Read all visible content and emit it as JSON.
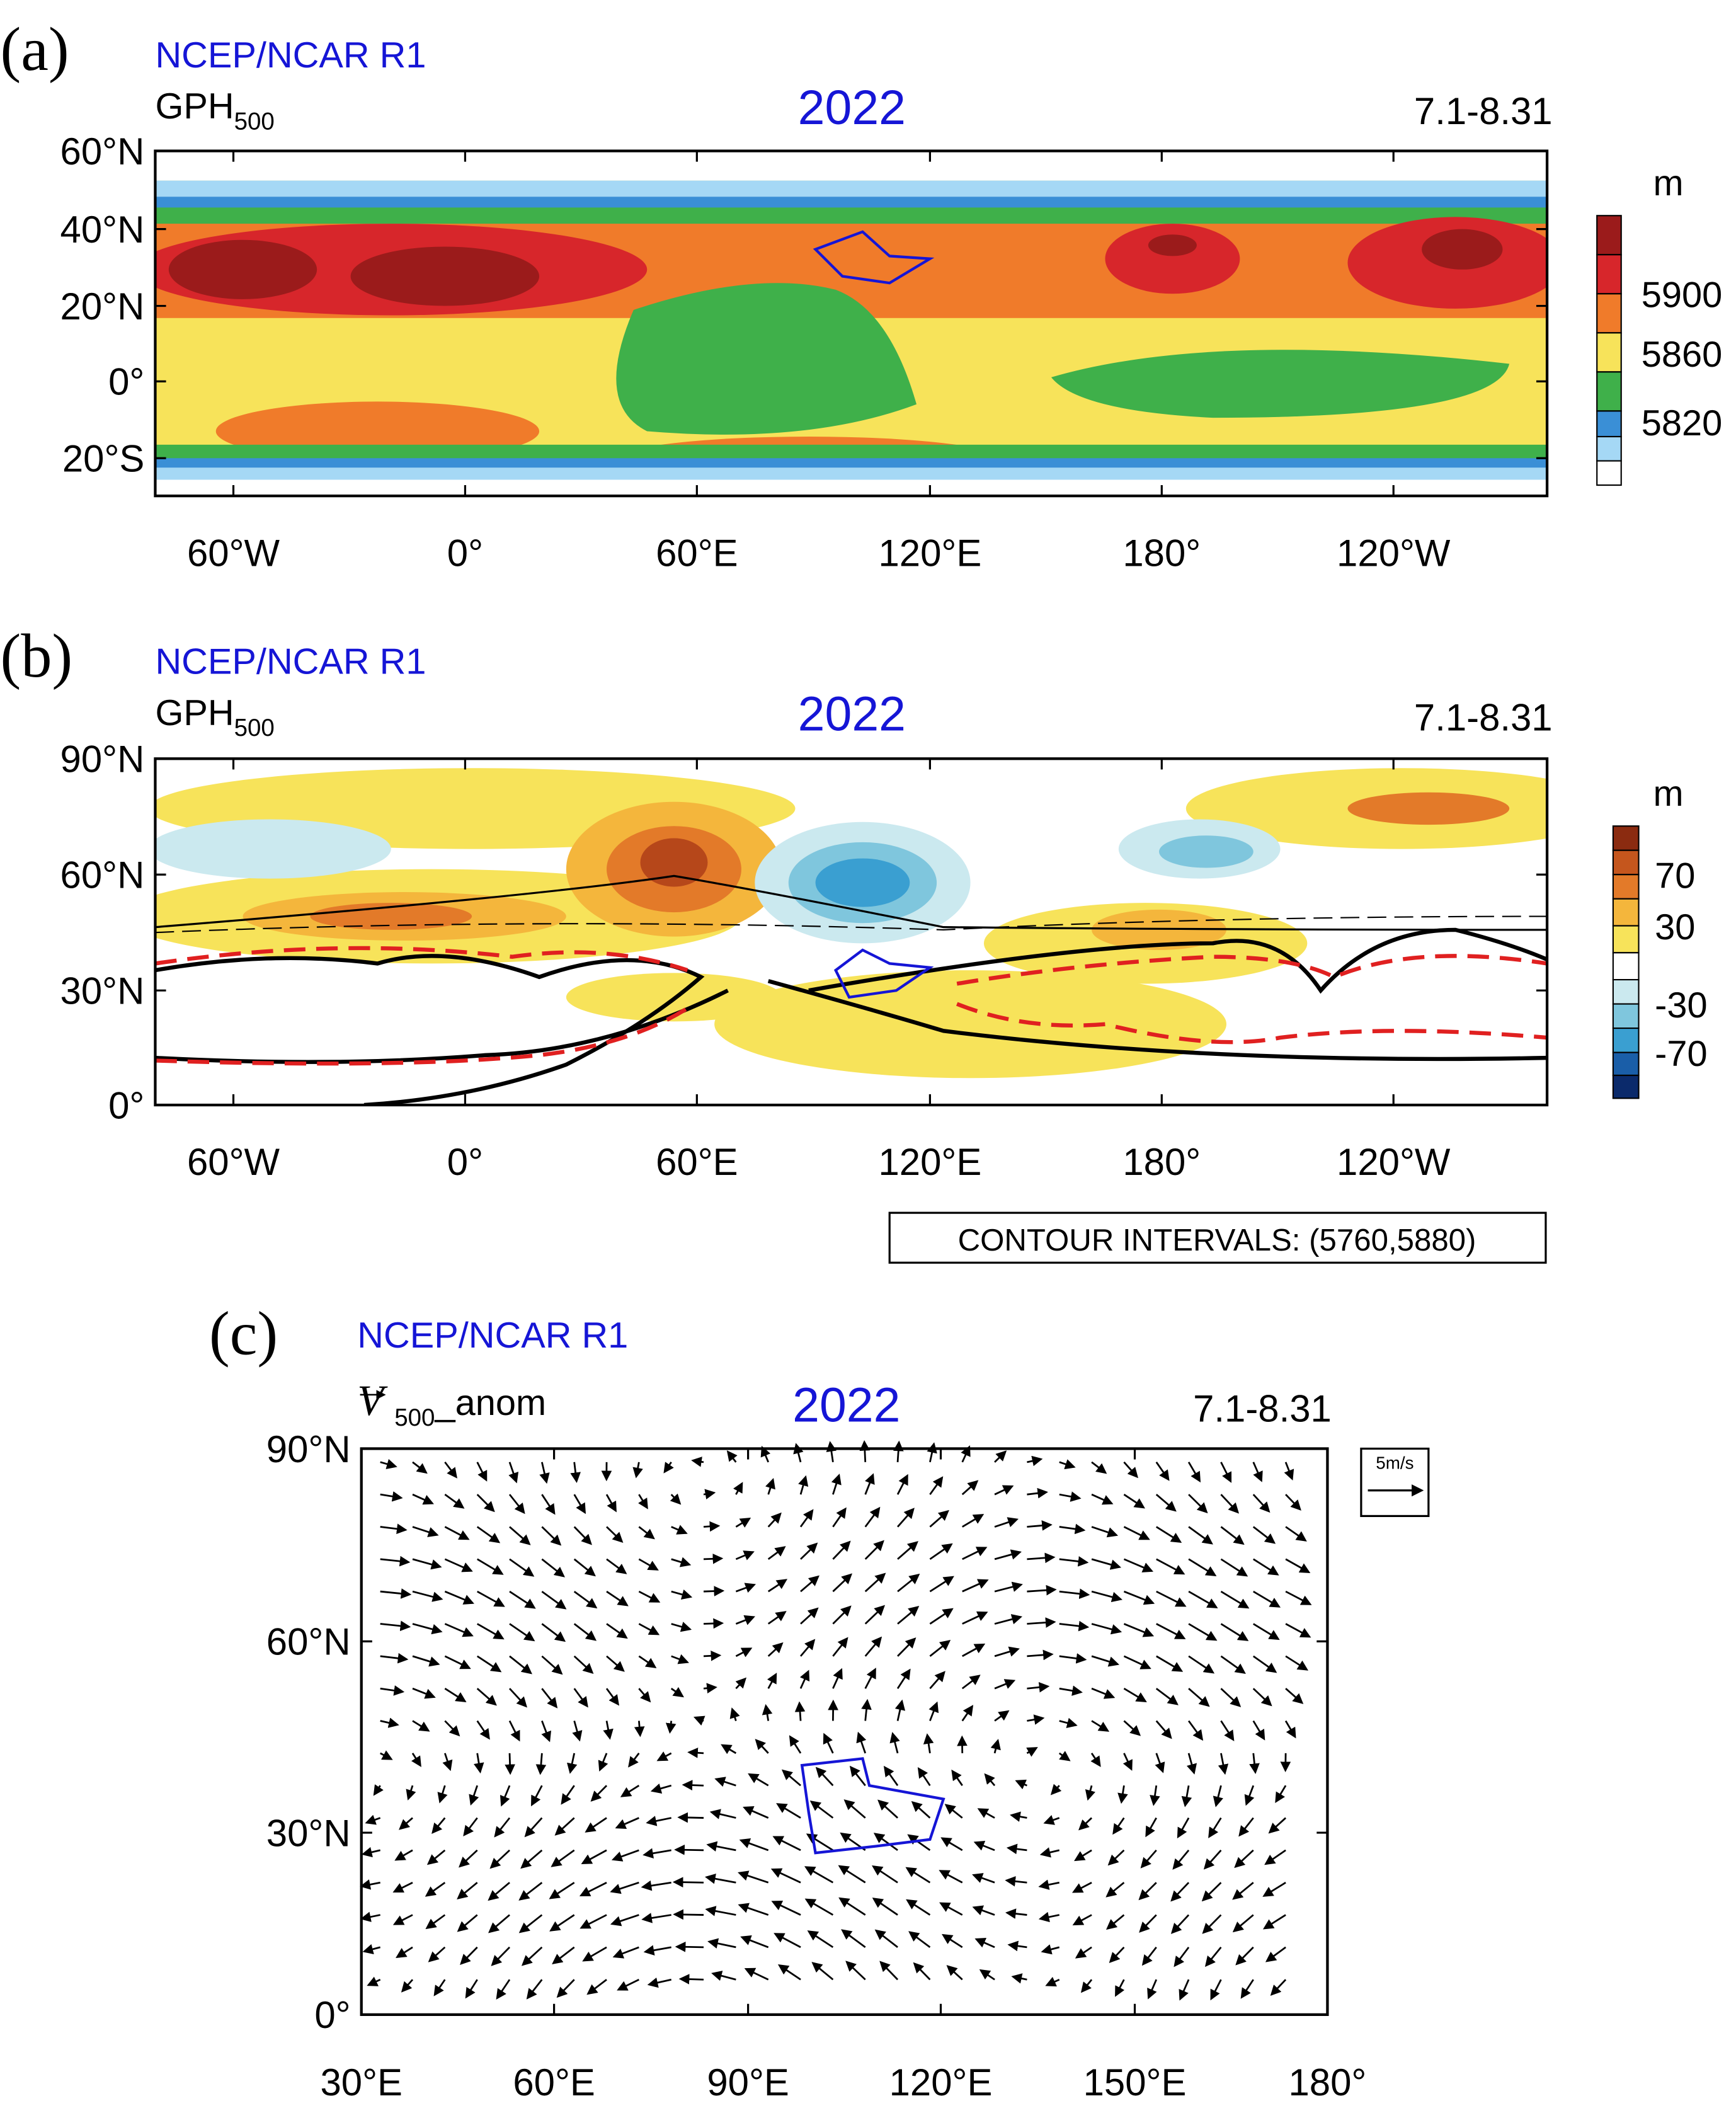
{
  "panels": [
    {
      "label": "(a)",
      "source": "NCEP/NCAR R1",
      "variable": "GPH",
      "subscript": "500",
      "year": "2022",
      "period": "7.1-8.31",
      "lat_labels": [
        "60°N",
        "40°N",
        "20°N",
        "0°",
        "20°S"
      ],
      "lon_labels": [
        "60°W",
        "0°",
        "60°E",
        "120°E",
        "180°",
        "120°W"
      ],
      "colorbar": {
        "unit": "m",
        "labels": [
          "5900",
          "5860",
          "5820"
        ]
      }
    },
    {
      "label": "(b)",
      "source": "NCEP/NCAR R1",
      "variable": "GPH",
      "subscript": "500",
      "year": "2022",
      "period": "7.1-8.31",
      "lat_labels": [
        "90°N",
        "60°N",
        "30°N",
        "0°"
      ],
      "lon_labels": [
        "60°W",
        "0°",
        "60°E",
        "120°E",
        "180°",
        "120°W"
      ],
      "colorbar": {
        "unit": "m",
        "labels": [
          "70",
          "30",
          "-30",
          "-70"
        ]
      },
      "note": "CONTOUR INTERVALS: (5760,5880)"
    },
    {
      "label": "(c)",
      "source": "NCEP/NCAR R1",
      "variable": "V",
      "subscript": "500",
      "suffix": "_anom",
      "year": "2022",
      "period": "7.1-8.31",
      "lat_labels": [
        "90°N",
        "60°N",
        "30°N",
        "0°"
      ],
      "lon_labels": [
        "30°E",
        "60°E",
        "90°E",
        "120°E",
        "150°E",
        "180°"
      ],
      "reference": "5m/s"
    }
  ]
}
